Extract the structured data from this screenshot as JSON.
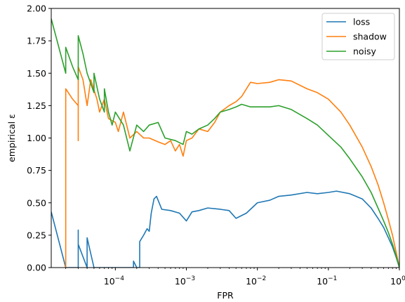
{
  "chart_data": {
    "type": "line",
    "title": "",
    "xlabel": "FPR",
    "ylabel": "empirical ε",
    "xscale": "log",
    "xlim": [
      1.25e-05,
      1
    ],
    "ylim": [
      0,
      2
    ],
    "x_ticks": [
      {
        "value": 0.0001,
        "base": "10",
        "exp": "−4"
      },
      {
        "value": 0.001,
        "base": "10",
        "exp": "−3"
      },
      {
        "value": 0.01,
        "base": "10",
        "exp": "−2"
      },
      {
        "value": 0.1,
        "base": "10",
        "exp": "−1"
      },
      {
        "value": 1,
        "base": "10",
        "exp": "0"
      }
    ],
    "y_ticks": [
      "0.00",
      "0.25",
      "0.50",
      "0.75",
      "1.00",
      "1.25",
      "1.50",
      "1.75",
      "2.00"
    ],
    "grid": false,
    "legend_position": "top-right",
    "series": [
      {
        "name": "loss",
        "color": "#1f77b4",
        "points": [
          [
            1.25e-05,
            0.43
          ],
          [
            2e-05,
            0.0
          ],
          [
            3e-05,
            0.0
          ],
          [
            3e-05,
            0.29
          ],
          [
            3e-05,
            0.18
          ],
          [
            4e-05,
            0.0
          ],
          [
            4e-05,
            0.23
          ],
          [
            5e-05,
            0.0
          ],
          [
            0.00018,
            0.0
          ],
          [
            0.00018,
            0.05
          ],
          [
            0.0002,
            0.0
          ],
          [
            0.00022,
            0.0
          ],
          [
            0.00022,
            0.2
          ],
          [
            0.00025,
            0.25
          ],
          [
            0.00028,
            0.3
          ],
          [
            0.0003,
            0.28
          ],
          [
            0.00032,
            0.42
          ],
          [
            0.00035,
            0.53
          ],
          [
            0.00038,
            0.55
          ],
          [
            0.00045,
            0.45
          ],
          [
            0.0006,
            0.44
          ],
          [
            0.0008,
            0.42
          ],
          [
            0.001,
            0.36
          ],
          [
            0.0012,
            0.43
          ],
          [
            0.0015,
            0.44
          ],
          [
            0.002,
            0.46
          ],
          [
            0.003,
            0.45
          ],
          [
            0.004,
            0.44
          ],
          [
            0.005,
            0.38
          ],
          [
            0.007,
            0.42
          ],
          [
            0.01,
            0.5
          ],
          [
            0.015,
            0.52
          ],
          [
            0.02,
            0.55
          ],
          [
            0.03,
            0.56
          ],
          [
            0.05,
            0.58
          ],
          [
            0.07,
            0.57
          ],
          [
            0.1,
            0.58
          ],
          [
            0.13,
            0.59
          ],
          [
            0.2,
            0.57
          ],
          [
            0.3,
            0.53
          ],
          [
            0.4,
            0.46
          ],
          [
            0.5,
            0.38
          ],
          [
            0.6,
            0.31
          ],
          [
            0.7,
            0.23
          ],
          [
            0.8,
            0.16
          ],
          [
            0.9,
            0.08
          ],
          [
            1,
            0.0
          ]
        ]
      },
      {
        "name": "shadow",
        "color": "#ff7f0e",
        "points": [
          [
            2e-05,
            0.0
          ],
          [
            2e-05,
            1.38
          ],
          [
            2.5e-05,
            1.3
          ],
          [
            3e-05,
            1.25
          ],
          [
            3e-05,
            0.98
          ],
          [
            3e-05,
            1.55
          ],
          [
            3.5e-05,
            1.45
          ],
          [
            4e-05,
            1.25
          ],
          [
            4.5e-05,
            1.45
          ],
          [
            5.5e-05,
            1.3
          ],
          [
            6e-05,
            1.2
          ],
          [
            7e-05,
            1.3
          ],
          [
            8e-05,
            1.15
          ],
          [
            0.0001,
            1.12
          ],
          [
            0.00011,
            1.05
          ],
          [
            0.00013,
            1.2
          ],
          [
            0.00016,
            1.0
          ],
          [
            0.0002,
            1.05
          ],
          [
            0.00025,
            1.0
          ],
          [
            0.0003,
            1.0
          ],
          [
            0.0004,
            0.97
          ],
          [
            0.0005,
            0.95
          ],
          [
            0.0006,
            0.98
          ],
          [
            0.0007,
            0.9
          ],
          [
            0.0008,
            0.95
          ],
          [
            0.0009,
            0.86
          ],
          [
            0.001,
            0.98
          ],
          [
            0.0012,
            1.0
          ],
          [
            0.0015,
            1.07
          ],
          [
            0.002,
            1.05
          ],
          [
            0.0025,
            1.12
          ],
          [
            0.003,
            1.2
          ],
          [
            0.004,
            1.25
          ],
          [
            0.005,
            1.28
          ],
          [
            0.006,
            1.32
          ],
          [
            0.008,
            1.43
          ],
          [
            0.01,
            1.42
          ],
          [
            0.015,
            1.43
          ],
          [
            0.02,
            1.45
          ],
          [
            0.03,
            1.44
          ],
          [
            0.05,
            1.38
          ],
          [
            0.07,
            1.35
          ],
          [
            0.1,
            1.3
          ],
          [
            0.15,
            1.2
          ],
          [
            0.2,
            1.1
          ],
          [
            0.3,
            0.93
          ],
          [
            0.4,
            0.78
          ],
          [
            0.5,
            0.64
          ],
          [
            0.6,
            0.5
          ],
          [
            0.7,
            0.37
          ],
          [
            0.8,
            0.25
          ],
          [
            0.9,
            0.12
          ],
          [
            1,
            0.0
          ]
        ]
      },
      {
        "name": "noisy",
        "color": "#2ca02c",
        "points": [
          [
            1.25e-05,
            1.92
          ],
          [
            2e-05,
            1.5
          ],
          [
            2e-05,
            1.7
          ],
          [
            2.5e-05,
            1.55
          ],
          [
            3e-05,
            1.45
          ],
          [
            3e-05,
            1.79
          ],
          [
            3.5e-05,
            1.65
          ],
          [
            4e-05,
            1.5
          ],
          [
            5e-05,
            1.35
          ],
          [
            5e-05,
            1.5
          ],
          [
            6e-05,
            1.3
          ],
          [
            7e-05,
            1.2
          ],
          [
            7e-05,
            1.38
          ],
          [
            8e-05,
            1.2
          ],
          [
            9e-05,
            1.1
          ],
          [
            0.0001,
            1.2
          ],
          [
            0.00013,
            1.1
          ],
          [
            0.00016,
            0.9
          ],
          [
            0.0002,
            1.1
          ],
          [
            0.00025,
            1.05
          ],
          [
            0.0003,
            1.1
          ],
          [
            0.0004,
            1.12
          ],
          [
            0.0005,
            1.0
          ],
          [
            0.0007,
            0.98
          ],
          [
            0.0009,
            0.95
          ],
          [
            0.001,
            1.05
          ],
          [
            0.0012,
            1.03
          ],
          [
            0.0015,
            1.07
          ],
          [
            0.002,
            1.1
          ],
          [
            0.0025,
            1.15
          ],
          [
            0.003,
            1.2
          ],
          [
            0.004,
            1.22
          ],
          [
            0.005,
            1.24
          ],
          [
            0.006,
            1.26
          ],
          [
            0.008,
            1.24
          ],
          [
            0.01,
            1.24
          ],
          [
            0.015,
            1.24
          ],
          [
            0.02,
            1.25
          ],
          [
            0.03,
            1.22
          ],
          [
            0.05,
            1.15
          ],
          [
            0.07,
            1.1
          ],
          [
            0.1,
            1.02
          ],
          [
            0.15,
            0.93
          ],
          [
            0.2,
            0.84
          ],
          [
            0.3,
            0.7
          ],
          [
            0.4,
            0.58
          ],
          [
            0.5,
            0.46
          ],
          [
            0.6,
            0.36
          ],
          [
            0.7,
            0.27
          ],
          [
            0.8,
            0.18
          ],
          [
            0.9,
            0.09
          ],
          [
            1,
            0.0
          ]
        ]
      }
    ]
  }
}
